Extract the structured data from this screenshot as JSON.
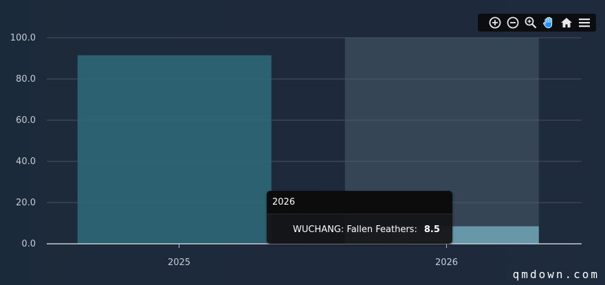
{
  "chart_data": {
    "type": "bar",
    "categories": [
      "2025",
      "2026"
    ],
    "series": [
      {
        "name": "WUCHANG: Fallen Feathers",
        "values": [
          91.5,
          8.5
        ],
        "color": "#2d6676"
      }
    ],
    "ylim": [
      0,
      100
    ],
    "yticks": [
      "0.0",
      "20.0",
      "40.0",
      "60.0",
      "80.0",
      "100.0"
    ],
    "grid": true,
    "hover_category": "2026",
    "colors": {
      "bar": "#2d6676",
      "hover_bar": "#6a9fb0",
      "hover_band": "#3a4a5a",
      "grid": "#4a5666",
      "axis_text": "#c8cdd3"
    }
  },
  "tooltip": {
    "title": "2026",
    "series_label": "WUCHANG: Fallen Feathers:",
    "value": "8.5"
  },
  "toolbar": {
    "icons": [
      "zoom-in-icon",
      "zoom-out-icon",
      "magnify-icon",
      "pan-hand-icon",
      "home-icon",
      "menu-icon"
    ]
  },
  "watermark": "qmdown.com"
}
